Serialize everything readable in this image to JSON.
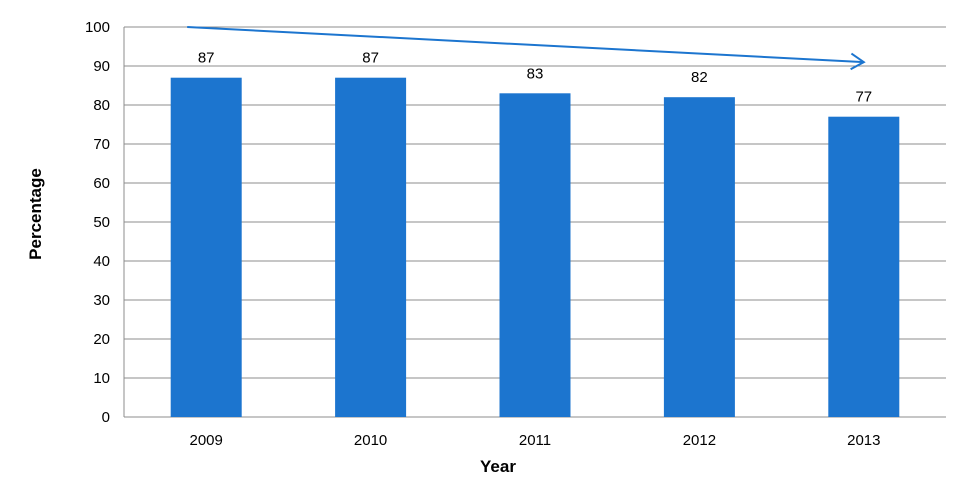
{
  "chart_data": {
    "type": "bar",
    "title": "",
    "xlabel": "Year",
    "ylabel": "Percentage",
    "categories": [
      "2009",
      "2010",
      "2011",
      "2012",
      "2013"
    ],
    "values": [
      87,
      87,
      83,
      82,
      77
    ],
    "ylim": [
      0,
      100
    ],
    "yticks": [
      0,
      10,
      20,
      30,
      40,
      50,
      60,
      70,
      80,
      90,
      100
    ],
    "grid": true,
    "legend": "none",
    "bar_color": "#1c75cf",
    "gridline_color": "#8c8c8c",
    "trend_arrow": {
      "from": 100,
      "to": 91,
      "color": "#1c75cf",
      "direction": "decreasing"
    }
  }
}
